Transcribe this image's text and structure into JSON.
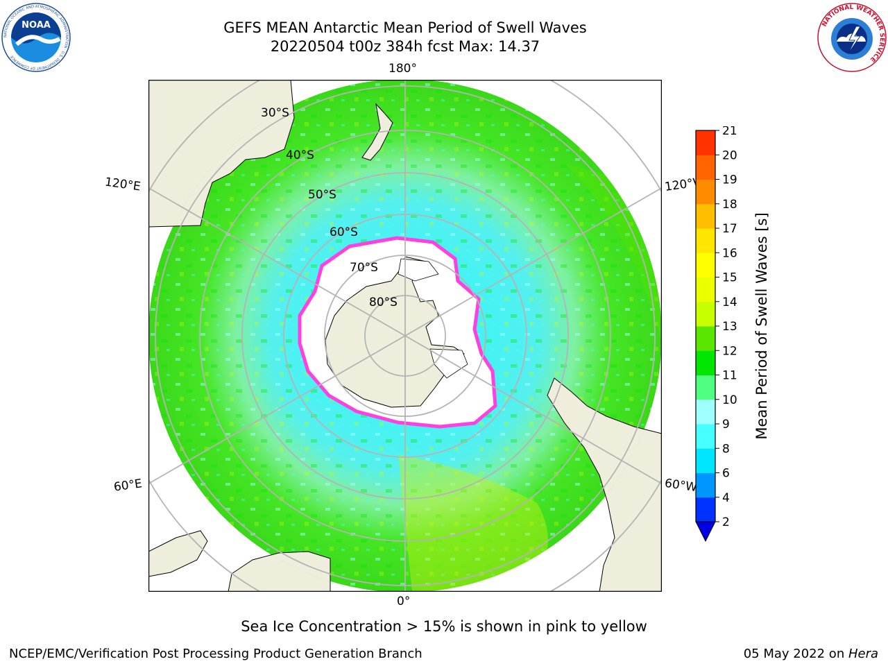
{
  "title": {
    "line1": "GEFS MEAN Antarctic Mean Period of Swell Waves",
    "line2": "20220504 t00z 384h fcst   Max: 14.37"
  },
  "longitude_labels": {
    "top": "180°",
    "bottom": "0°",
    "upper_left": "120°E",
    "lower_left": "60°E",
    "upper_right": "120°W",
    "lower_right": "60°W"
  },
  "latitude_labels": [
    "30°S",
    "40°S",
    "50°S",
    "60°S",
    "70°S",
    "80°S"
  ],
  "colorbar": {
    "label": "Mean Period of Swell Waves [s]",
    "ticks": [
      "2",
      "4",
      "6",
      "8",
      "9",
      "10",
      "11",
      "12",
      "13",
      "14",
      "15",
      "16",
      "17",
      "18",
      "19",
      "20",
      "21"
    ],
    "colors": [
      "#0032ff",
      "#0096ff",
      "#00e6ff",
      "#46ffff",
      "#a0ffff",
      "#50ff82",
      "#00e600",
      "#5ae600",
      "#c8ff00",
      "#ebff00",
      "#ffff00",
      "#ffe600",
      "#ffbe00",
      "#ff8c00",
      "#ff6400",
      "#ff3200",
      "#ff0000"
    ],
    "extend_color": "#0000e6"
  },
  "map_colors": {
    "land": "#efeddc",
    "ice_sheet": "#ffffff",
    "sea_ice_edge": "#ff40e0",
    "grid": "#b4b4b4",
    "ocean_far": "#3ddf18",
    "ocean_mid": "#7df09a",
    "ocean_near": "#4ef5f5"
  },
  "footnote": "Sea Ice Concentration > 15% is shown in pink to yellow",
  "credit": "NCEP/EMC/Verification Post Processing Product Generation Branch",
  "date_prefix": "05 May 2022 on ",
  "host": "Hera",
  "logos": {
    "noaa_text": "NOAA",
    "noaa_ring": "NATIONAL OCEANIC AND ATMOSPHERIC ADMINISTRATION · U.S. DEPARTMENT OF COMMERCE",
    "nws_ring": "NATIONAL WEATHER SERVICE"
  }
}
